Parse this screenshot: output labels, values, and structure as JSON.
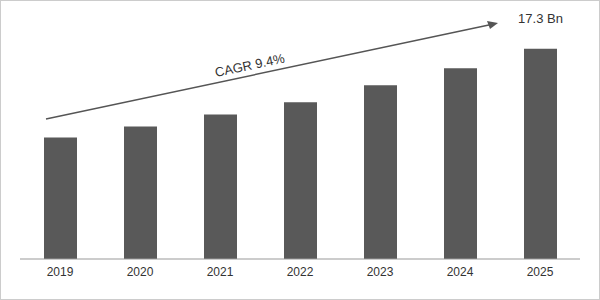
{
  "chart_data": {
    "type": "bar",
    "categories": [
      "2019",
      "2020",
      "2021",
      "2022",
      "2023",
      "2024",
      "2025"
    ],
    "values": [
      10.0,
      10.9,
      11.9,
      12.9,
      14.3,
      15.7,
      17.3
    ],
    "value_labels": [
      null,
      null,
      null,
      null,
      null,
      null,
      "17.3 Bn"
    ],
    "data_labels": true,
    "color": "#595959",
    "tick_labels": "x",
    "grid": false,
    "annotations": [
      "CAGR 9.4%"
    ]
  }
}
